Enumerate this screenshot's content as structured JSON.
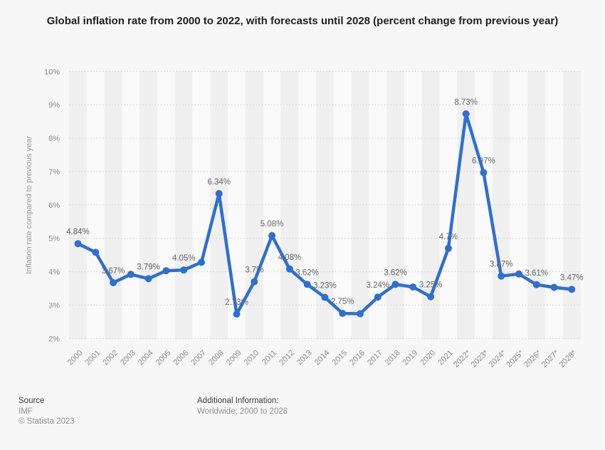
{
  "title": "Global inflation rate from 2000 to 2022, with forecasts until 2028 (percent change from previous year)",
  "chart_data": {
    "type": "line",
    "title": "Global inflation rate from 2000 to 2022, with forecasts until 2028 (percent change from previous year)",
    "xlabel": "",
    "ylabel": "Inflation rate compared to previous year",
    "ylim": [
      2,
      10
    ],
    "yticks": [
      2,
      3,
      4,
      5,
      6,
      7,
      8,
      9,
      10
    ],
    "ytick_labels": [
      "2%",
      "3%",
      "4%",
      "5%",
      "6%",
      "7%",
      "8%",
      "9%",
      "10%"
    ],
    "grid": "horizontal-dotted",
    "legend": "none",
    "series_name": "Inflation rate compared to previous year",
    "categories": [
      "2000",
      "2001",
      "2002",
      "2003",
      "2004",
      "2005",
      "2006",
      "2007",
      "2008",
      "2009",
      "2010",
      "2011",
      "2012",
      "2013",
      "2014",
      "2015",
      "2016",
      "2017",
      "2018",
      "2019",
      "2020",
      "2021",
      "2022*",
      "2023*",
      "2024*",
      "2025*",
      "2026*",
      "2027*",
      "2028*"
    ],
    "values": [
      4.84,
      4.58,
      3.67,
      3.92,
      3.79,
      4.03,
      4.05,
      4.28,
      6.34,
      2.73,
      3.7,
      5.08,
      4.08,
      3.62,
      3.23,
      2.75,
      2.74,
      3.24,
      3.62,
      3.54,
      3.25,
      4.7,
      8.73,
      6.97,
      3.87,
      3.93,
      3.61,
      3.53,
      3.47
    ],
    "point_labels": [
      "4.84%",
      null,
      "3.67%",
      null,
      "3.79%",
      null,
      "4.05%",
      null,
      "6.34%",
      "2.73%",
      "3.7%",
      "5.08%",
      "4.08%",
      "3.62%",
      "3.23%",
      "2.75%",
      null,
      "3.24%",
      "3.62%",
      null,
      "3.25%",
      "4.7%",
      "8.73%",
      "6.97%",
      "3.87%",
      null,
      "3.61%",
      null,
      "3.47%"
    ],
    "colors": {
      "line": "#2e6fd2",
      "point_label": "#666666",
      "tick_label": "#8c8c8c",
      "axis_title": "#999999",
      "gridline": "#cdcdcd",
      "stripe_dark": "#f0f0f0",
      "stripe_light": "#fafafa",
      "background": "#f7f7f7",
      "title_text": "#1f1f1f"
    }
  },
  "footer": {
    "source_label": "Source",
    "source_value": "IMF",
    "copyright": "© Statista 2023",
    "additional_label": "Additional Information:",
    "additional_value": "Worldwide; 2000 to 2028"
  }
}
